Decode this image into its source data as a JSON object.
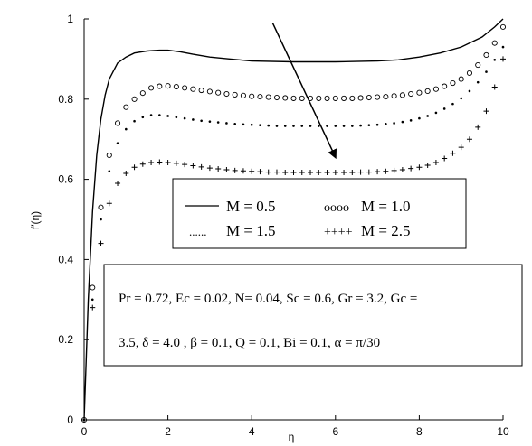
{
  "chart_data": {
    "type": "line",
    "xlabel": "η",
    "ylabel": "f′(η)",
    "xlim": [
      0,
      10
    ],
    "ylim": [
      0,
      1
    ],
    "x_ticks": [
      "0",
      "2",
      "4",
      "6",
      "8",
      "10"
    ],
    "y_ticks": [
      "0",
      "0.2",
      "0.4",
      "0.6",
      "0.8",
      "1"
    ],
    "series": [
      {
        "name": "M = 0.5",
        "legend_marker": "——",
        "style": "solid",
        "x": [
          0,
          0.1,
          0.2,
          0.3,
          0.4,
          0.5,
          0.6,
          0.7,
          0.8,
          1.0,
          1.2,
          1.5,
          1.8,
          2.0,
          2.3,
          2.6,
          3.0,
          3.5,
          4.0,
          5.0,
          6.0,
          7.0,
          7.5,
          8.0,
          8.5,
          9.0,
          9.5,
          9.8,
          10.0
        ],
        "y": [
          0,
          0.3,
          0.52,
          0.66,
          0.75,
          0.81,
          0.85,
          0.87,
          0.89,
          0.905,
          0.915,
          0.92,
          0.922,
          0.922,
          0.918,
          0.912,
          0.905,
          0.9,
          0.895,
          0.893,
          0.893,
          0.895,
          0.898,
          0.905,
          0.915,
          0.93,
          0.955,
          0.98,
          1.0
        ]
      },
      {
        "name": "M = 1.0",
        "legend_marker": "oooo",
        "style": "circles",
        "x": [
          0,
          0.2,
          0.4,
          0.6,
          0.8,
          1.0,
          1.2,
          1.4,
          1.6,
          1.8,
          2.0,
          2.2,
          2.4,
          2.6,
          2.8,
          3.0,
          3.2,
          3.4,
          3.6,
          3.8,
          4.0,
          4.2,
          4.4,
          4.6,
          4.8,
          5.0,
          5.2,
          5.4,
          5.6,
          5.8,
          6.0,
          6.2,
          6.4,
          6.6,
          6.8,
          7.0,
          7.2,
          7.4,
          7.6,
          7.8,
          8.0,
          8.2,
          8.4,
          8.6,
          8.8,
          9.0,
          9.2,
          9.4,
          9.6,
          9.8,
          10.0
        ],
        "y": [
          0,
          0.33,
          0.53,
          0.66,
          0.74,
          0.78,
          0.8,
          0.815,
          0.828,
          0.832,
          0.833,
          0.831,
          0.828,
          0.825,
          0.822,
          0.819,
          0.816,
          0.813,
          0.811,
          0.809,
          0.807,
          0.806,
          0.805,
          0.804,
          0.803,
          0.802,
          0.802,
          0.802,
          0.802,
          0.802,
          0.802,
          0.802,
          0.802,
          0.803,
          0.804,
          0.805,
          0.806,
          0.808,
          0.81,
          0.813,
          0.816,
          0.82,
          0.825,
          0.832,
          0.84,
          0.85,
          0.865,
          0.885,
          0.91,
          0.94,
          0.98
        ]
      },
      {
        "name": "M = 1.5",
        "legend_marker": "......",
        "style": "dotted",
        "x": [
          0,
          0.2,
          0.4,
          0.6,
          0.8,
          1.0,
          1.2,
          1.4,
          1.6,
          1.8,
          2.0,
          2.2,
          2.4,
          2.6,
          2.8,
          3.0,
          3.2,
          3.4,
          3.6,
          3.8,
          4.0,
          4.2,
          4.4,
          4.6,
          4.8,
          5.0,
          5.2,
          5.4,
          5.6,
          5.8,
          6.0,
          6.2,
          6.4,
          6.6,
          6.8,
          7.0,
          7.2,
          7.4,
          7.6,
          7.8,
          8.0,
          8.2,
          8.4,
          8.6,
          8.8,
          9.0,
          9.2,
          9.4,
          9.6,
          9.8,
          10.0
        ],
        "y": [
          0,
          0.3,
          0.5,
          0.62,
          0.69,
          0.725,
          0.745,
          0.755,
          0.76,
          0.76,
          0.758,
          0.755,
          0.752,
          0.749,
          0.746,
          0.744,
          0.742,
          0.74,
          0.738,
          0.737,
          0.736,
          0.735,
          0.734,
          0.733,
          0.733,
          0.733,
          0.733,
          0.733,
          0.733,
          0.733,
          0.733,
          0.733,
          0.733,
          0.734,
          0.735,
          0.736,
          0.738,
          0.74,
          0.743,
          0.747,
          0.752,
          0.758,
          0.766,
          0.776,
          0.788,
          0.802,
          0.82,
          0.842,
          0.868,
          0.898,
          0.93
        ]
      },
      {
        "name": "M = 2.5",
        "legend_marker": "++++",
        "style": "plus",
        "x": [
          0,
          0.2,
          0.4,
          0.6,
          0.8,
          1.0,
          1.2,
          1.4,
          1.6,
          1.8,
          2.0,
          2.2,
          2.4,
          2.6,
          2.8,
          3.0,
          3.2,
          3.4,
          3.6,
          3.8,
          4.0,
          4.2,
          4.4,
          4.6,
          4.8,
          5.0,
          5.2,
          5.4,
          5.6,
          5.8,
          6.0,
          6.2,
          6.4,
          6.6,
          6.8,
          7.0,
          7.2,
          7.4,
          7.6,
          7.8,
          8.0,
          8.2,
          8.4,
          8.6,
          8.8,
          9.0,
          9.2,
          9.4,
          9.6,
          9.8,
          10.0
        ],
        "y": [
          0,
          0.28,
          0.44,
          0.54,
          0.59,
          0.615,
          0.63,
          0.638,
          0.642,
          0.643,
          0.642,
          0.64,
          0.637,
          0.634,
          0.631,
          0.628,
          0.626,
          0.624,
          0.622,
          0.621,
          0.62,
          0.619,
          0.618,
          0.618,
          0.617,
          0.617,
          0.617,
          0.617,
          0.617,
          0.617,
          0.617,
          0.617,
          0.617,
          0.618,
          0.618,
          0.619,
          0.62,
          0.622,
          0.624,
          0.627,
          0.63,
          0.635,
          0.642,
          0.652,
          0.665,
          0.68,
          0.7,
          0.73,
          0.77,
          0.83,
          0.9
        ]
      }
    ],
    "legend": {
      "placement": "center-right",
      "entries": [
        {
          "marker": "——",
          "label": "M = 0.5"
        },
        {
          "marker": "oooo",
          "label": "M = 1.0"
        },
        {
          "marker": "......",
          "label": "M = 1.5"
        },
        {
          "marker": "++++",
          "label": "M = 2.5"
        }
      ]
    },
    "annotation": {
      "type": "arrow",
      "from": [
        4.5,
        0.99
      ],
      "to": [
        6.0,
        0.655
      ]
    },
    "parameters": {
      "line1": "Pr = 0.72, Ec = 0.02, N= 0.04, Sc = 0.6, Gr = 3.2, Gc =",
      "line2": "3.5,  δ = 4.0 ,  β = 0.1, Q = 0.1, Bi = 0.1,   α = π/30"
    }
  }
}
